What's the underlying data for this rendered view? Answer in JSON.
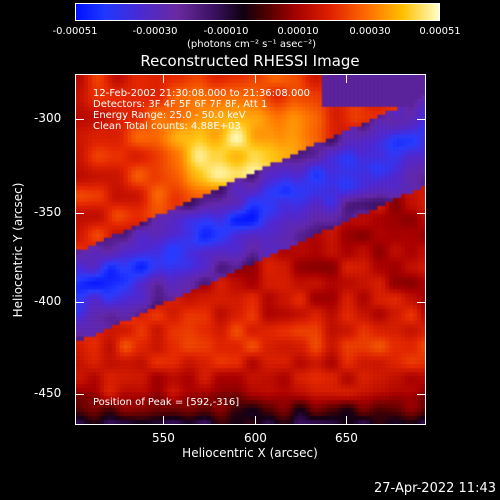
{
  "colorbar": {
    "tick_labels": [
      "-0.00051",
      "-0.00030",
      "-0.00010",
      "0.00010",
      "0.00030",
      "0.00051"
    ],
    "units": "(photons cm⁻² s⁻¹ asec⁻²)"
  },
  "plot": {
    "title": "Reconstructed RHESSI Image",
    "info_lines": [
      "12-Feb-2002 21:30:08.000 to 21:36:08.000",
      "Detectors: 3F 4F 5F 6F 7F 8F, Att 1",
      "Energy Range: 25.0 - 50.0 keV",
      "Clean     Total counts: 4.88E+03"
    ],
    "peak_text": "Position of Peak = [592,-316]",
    "x_axis_label": "Heliocentric X (arcsec)",
    "y_axis_label": "Heliocentric Y (arcsec)",
    "x_tick_labels": [
      "550",
      "600",
      "650"
    ],
    "y_tick_labels": [
      "-300",
      "-350",
      "-400",
      "-450"
    ]
  },
  "footer": {
    "timestamp": "27-Apr-2022 11:43"
  },
  "colors": {
    "background": "#000000",
    "foreground": "#ffffff",
    "cmap_low": "#0010ff",
    "cmap_mid": "#3a1060",
    "cmap_high": "#ffffc8"
  }
}
